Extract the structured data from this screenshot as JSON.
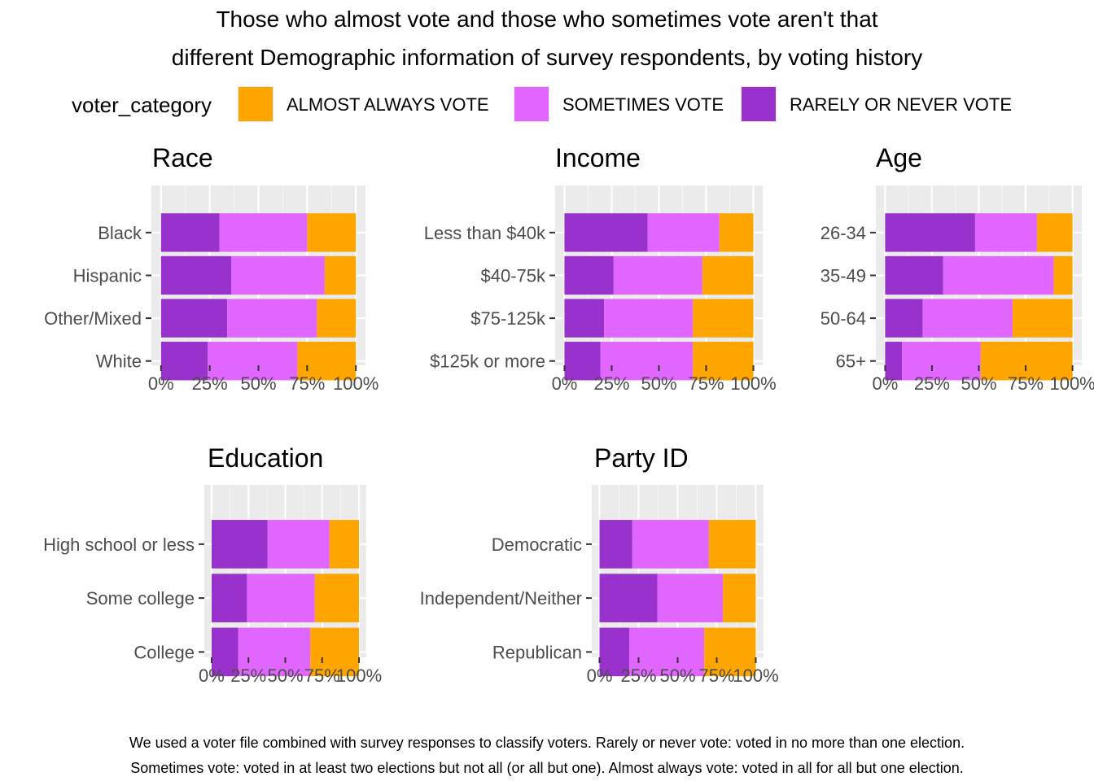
{
  "title_lines": [
    "Those who almost vote and those who sometimes vote aren't that",
    "different Demographic information of survey respondents, by voting history"
  ],
  "legend": {
    "title": "voter_category",
    "items": [
      {
        "label": "ALMOST ALWAYS VOTE",
        "color": "#FFA500"
      },
      {
        "label": "SOMETIMES VOTE",
        "color": "#E066FF"
      },
      {
        "label": "RARELY OR NEVER VOTE",
        "color": "#9932CC"
      }
    ]
  },
  "caption_lines": [
    "We used a voter file combined with survey responses to classify voters. Rarely or never vote: voted in no more than one election.",
    "Sometimes vote: voted in at least two elections but not all (or all but one). Almost always vote: voted in all for all but one election."
  ],
  "chart_data": [
    {
      "type": "bar",
      "orientation": "horizontal",
      "stacked": "fill",
      "title": "Race",
      "categories": [
        "Black",
        "Hispanic",
        "Other/Mixed",
        "White"
      ],
      "series": [
        {
          "name": "RARELY OR NEVER VOTE",
          "values": [
            30,
            36,
            34,
            24
          ]
        },
        {
          "name": "SOMETIMES VOTE",
          "values": [
            45,
            48,
            46,
            46
          ]
        },
        {
          "name": "ALMOST ALWAYS VOTE",
          "values": [
            25,
            16,
            20,
            30
          ]
        }
      ],
      "xticks": [
        "0%",
        "25%",
        "50%",
        "75%",
        "100%"
      ],
      "xlim": [
        0,
        100
      ]
    },
    {
      "type": "bar",
      "orientation": "horizontal",
      "stacked": "fill",
      "title": "Income",
      "categories": [
        "Less than $40k",
        "$40-75k",
        "$75-125k",
        "$125k or more"
      ],
      "series": [
        {
          "name": "RARELY OR NEVER VOTE",
          "values": [
            44,
            26,
            21,
            19
          ]
        },
        {
          "name": "SOMETIMES VOTE",
          "values": [
            38,
            47,
            47,
            49
          ]
        },
        {
          "name": "ALMOST ALWAYS VOTE",
          "values": [
            18,
            27,
            32,
            32
          ]
        }
      ],
      "xticks": [
        "0%",
        "25%",
        "50%",
        "75%",
        "100%"
      ],
      "xlim": [
        0,
        100
      ]
    },
    {
      "type": "bar",
      "orientation": "horizontal",
      "stacked": "fill",
      "title": "Age",
      "categories": [
        "26-34",
        "35-49",
        "50-64",
        "65+"
      ],
      "series": [
        {
          "name": "RARELY OR NEVER VOTE",
          "values": [
            48,
            31,
            20,
            9
          ]
        },
        {
          "name": "SOMETIMES VOTE",
          "values": [
            33,
            59,
            48,
            42
          ]
        },
        {
          "name": "ALMOST ALWAYS VOTE",
          "values": [
            19,
            10,
            32,
            49
          ]
        }
      ],
      "xticks": [
        "0%",
        "25%",
        "50%",
        "75%",
        "100%"
      ],
      "xlim": [
        0,
        100
      ]
    },
    {
      "type": "bar",
      "orientation": "horizontal",
      "stacked": "fill",
      "title": "Education",
      "categories": [
        "High school or less",
        "Some college",
        "College"
      ],
      "series": [
        {
          "name": "RARELY OR NEVER VOTE",
          "values": [
            38,
            24,
            18
          ]
        },
        {
          "name": "SOMETIMES VOTE",
          "values": [
            42,
            46,
            49
          ]
        },
        {
          "name": "ALMOST ALWAYS VOTE",
          "values": [
            20,
            30,
            33
          ]
        }
      ],
      "xticks": [
        "0%",
        "25%",
        "50%",
        "75%",
        "100%"
      ],
      "xlim": [
        0,
        100
      ]
    },
    {
      "type": "bar",
      "orientation": "horizontal",
      "stacked": "fill",
      "title": "Party ID",
      "categories": [
        "Democratic",
        "Independent/Neither",
        "Republican"
      ],
      "series": [
        {
          "name": "RARELY OR NEVER VOTE",
          "values": [
            21,
            37,
            19
          ]
        },
        {
          "name": "SOMETIMES VOTE",
          "values": [
            49,
            42,
            48
          ]
        },
        {
          "name": "ALMOST ALWAYS VOTE",
          "values": [
            30,
            21,
            33
          ]
        }
      ],
      "xticks": [
        "0%",
        "25%",
        "50%",
        "75%",
        "100%"
      ],
      "xlim": [
        0,
        100
      ]
    }
  ]
}
